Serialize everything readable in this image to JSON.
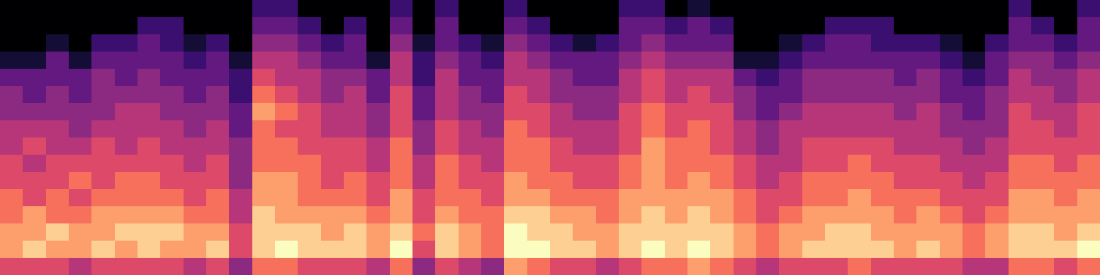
{
  "chart_data": {
    "type": "heatmap",
    "color": "magma",
    "tick_labels": false,
    "frames": [
      [
        6,
        8,
        8,
        7,
        7,
        6,
        6,
        5,
        5,
        4,
        4,
        3,
        1,
        0,
        0,
        0
      ],
      [
        6,
        9,
        8,
        8,
        6,
        6,
        5,
        6,
        5,
        4,
        3,
        3,
        1,
        0,
        0,
        0
      ],
      [
        6,
        8,
        9,
        7,
        7,
        6,
        6,
        5,
        5,
        4,
        4,
        3,
        3,
        1,
        0,
        0
      ],
      [
        5,
        8,
        8,
        7,
        6,
        7,
        6,
        5,
        4,
        4,
        3,
        3,
        1,
        0,
        0,
        0
      ],
      [
        6,
        9,
        8,
        8,
        7,
        6,
        6,
        6,
        5,
        4,
        4,
        4,
        3,
        2,
        0,
        0
      ],
      [
        6,
        8,
        9,
        8,
        7,
        7,
        6,
        5,
        5,
        5,
        4,
        3,
        3,
        2,
        0,
        0
      ],
      [
        6,
        9,
        9,
        8,
        7,
        7,
        6,
        6,
        5,
        5,
        4,
        4,
        3,
        3,
        2,
        0
      ],
      [
        6,
        8,
        9,
        8,
        7,
        6,
        6,
        5,
        5,
        4,
        4,
        3,
        3,
        2,
        2,
        0
      ],
      [
        5,
        8,
        8,
        7,
        6,
        6,
        5,
        5,
        4,
        4,
        3,
        3,
        2,
        1,
        0,
        0
      ],
      [
        6,
        9,
        8,
        7,
        7,
        6,
        6,
        5,
        5,
        4,
        4,
        3,
        3,
        2,
        0,
        0
      ],
      [
        4,
        6,
        6,
        5,
        5,
        4,
        4,
        4,
        3,
        3,
        2,
        2,
        1,
        0,
        0,
        0
      ],
      [
        7,
        9,
        9,
        9,
        8,
        8,
        7,
        7,
        7,
        8,
        7,
        6,
        5,
        4,
        3,
        2
      ],
      [
        7,
        10,
        9,
        8,
        8,
        8,
        7,
        7,
        6,
        7,
        6,
        5,
        5,
        4,
        3,
        2
      ],
      [
        6,
        9,
        9,
        8,
        7,
        7,
        7,
        6,
        6,
        6,
        5,
        5,
        4,
        3,
        2,
        0
      ],
      [
        6,
        9,
        8,
        8,
        7,
        6,
        6,
        6,
        5,
        5,
        4,
        4,
        3,
        2,
        0,
        0
      ],
      [
        6,
        9,
        9,
        8,
        7,
        7,
        6,
        6,
        5,
        5,
        5,
        4,
        3,
        3,
        2,
        0
      ],
      [
        5,
        8,
        8,
        7,
        6,
        6,
        5,
        5,
        4,
        4,
        3,
        3,
        1,
        0,
        0,
        0
      ],
      [
        7,
        10,
        9,
        8,
        8,
        7,
        7,
        7,
        6,
        6,
        6,
        5,
        5,
        4,
        3,
        2
      ],
      [
        4,
        6,
        7,
        6,
        6,
        5,
        5,
        4,
        4,
        3,
        3,
        2,
        2,
        1,
        0,
        0
      ],
      [
        6,
        9,
        9,
        8,
        7,
        7,
        7,
        6,
        6,
        5,
        5,
        5,
        4,
        3,
        3,
        2
      ],
      [
        5,
        8,
        8,
        7,
        7,
        6,
        6,
        5,
        5,
        4,
        4,
        3,
        3,
        2,
        0,
        0
      ],
      [
        4,
        7,
        7,
        7,
        6,
        6,
        5,
        5,
        4,
        4,
        3,
        3,
        2,
        1,
        0,
        0
      ],
      [
        8,
        10,
        10,
        9,
        8,
        8,
        7,
        7,
        7,
        6,
        6,
        5,
        5,
        4,
        3,
        2
      ],
      [
        7,
        10,
        9,
        9,
        8,
        7,
        7,
        7,
        6,
        6,
        5,
        5,
        4,
        3,
        2,
        0
      ],
      [
        6,
        9,
        9,
        8,
        7,
        7,
        6,
        6,
        5,
        5,
        4,
        4,
        3,
        2,
        0,
        0
      ],
      [
        6,
        9,
        8,
        8,
        7,
        6,
        6,
        5,
        5,
        4,
        4,
        3,
        3,
        1,
        0,
        0
      ],
      [
        5,
        8,
        8,
        7,
        7,
        6,
        6,
        5,
        5,
        4,
        4,
        3,
        3,
        2,
        0,
        0
      ],
      [
        6,
        9,
        9,
        8,
        8,
        7,
        7,
        6,
        6,
        6,
        5,
        5,
        4,
        3,
        3,
        2
      ],
      [
        7,
        10,
        9,
        9,
        8,
        8,
        8,
        8,
        7,
        7,
        6,
        6,
        5,
        4,
        3,
        2
      ],
      [
        7,
        9,
        9,
        8,
        8,
        7,
        7,
        7,
        6,
        6,
        5,
        5,
        4,
        3,
        2,
        0
      ],
      [
        8,
        10,
        9,
        9,
        8,
        8,
        7,
        7,
        7,
        6,
        6,
        5,
        4,
        3,
        3,
        1
      ],
      [
        7,
        9,
        9,
        8,
        8,
        7,
        7,
        6,
        6,
        6,
        5,
        5,
        4,
        3,
        2,
        0
      ],
      [
        6,
        8,
        8,
        7,
        7,
        6,
        6,
        5,
        5,
        4,
        4,
        3,
        1,
        0,
        0,
        0
      ],
      [
        5,
        7,
        7,
        6,
        6,
        5,
        5,
        4,
        4,
        3,
        3,
        2,
        1,
        0,
        0,
        0
      ],
      [
        6,
        8,
        8,
        7,
        6,
        6,
        5,
        5,
        5,
        4,
        3,
        3,
        2,
        1,
        0,
        0
      ],
      [
        6,
        9,
        8,
        8,
        7,
        7,
        6,
        6,
        5,
        5,
        4,
        4,
        3,
        2,
        0,
        0
      ],
      [
        6,
        9,
        9,
        8,
        7,
        7,
        6,
        6,
        5,
        5,
        4,
        4,
        3,
        3,
        2,
        0
      ],
      [
        7,
        9,
        9,
        8,
        8,
        7,
        7,
        6,
        5,
        5,
        4,
        4,
        3,
        3,
        2,
        0
      ],
      [
        6,
        9,
        8,
        8,
        7,
        7,
        6,
        6,
        5,
        5,
        4,
        4,
        3,
        2,
        2,
        0
      ],
      [
        6,
        8,
        8,
        7,
        7,
        6,
        6,
        5,
        5,
        4,
        4,
        3,
        3,
        2,
        0,
        0
      ],
      [
        6,
        9,
        8,
        8,
        7,
        6,
        6,
        5,
        5,
        5,
        4,
        4,
        3,
        2,
        0,
        0
      ],
      [
        6,
        8,
        8,
        7,
        6,
        6,
        5,
        5,
        4,
        4,
        3,
        3,
        2,
        1,
        0,
        0
      ],
      [
        5,
        7,
        7,
        6,
        6,
        5,
        5,
        4,
        4,
        3,
        3,
        2,
        1,
        0,
        0,
        0
      ],
      [
        5,
        8,
        8,
        7,
        6,
        6,
        5,
        5,
        4,
        4,
        4,
        3,
        3,
        2,
        0,
        0
      ],
      [
        7,
        9,
        9,
        8,
        8,
        7,
        7,
        6,
        6,
        6,
        5,
        5,
        4,
        3,
        3,
        2
      ],
      [
        7,
        9,
        9,
        8,
        8,
        7,
        7,
        6,
        6,
        5,
        5,
        4,
        4,
        3,
        2,
        0
      ],
      [
        6,
        9,
        8,
        8,
        7,
        7,
        6,
        6,
        5,
        5,
        4,
        4,
        3,
        2,
        0,
        0
      ],
      [
        7,
        10,
        9,
        8,
        8,
        7,
        7,
        6,
        6,
        6,
        5,
        5,
        4,
        3,
        3,
        2
      ]
    ]
  }
}
